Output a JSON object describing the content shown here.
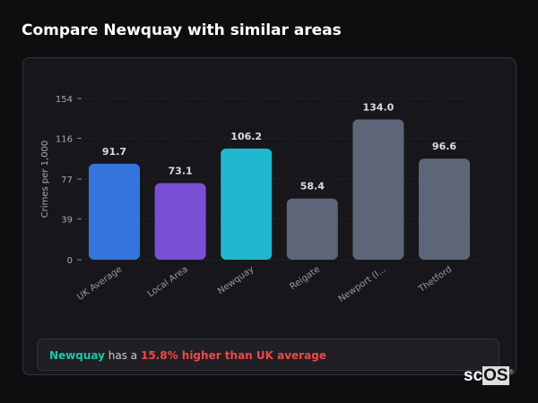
{
  "header": {
    "title": "Compare Newquay with similar areas"
  },
  "chart_data": {
    "type": "bar",
    "ylabel": "Crimes per 1,000",
    "xlabel": "",
    "ylim": [
      0,
      154
    ],
    "yticks": [
      "0",
      "39",
      "77",
      "116",
      "154"
    ],
    "grid": true,
    "categories": [
      "UK Average",
      "Local Area",
      "Newquay",
      "Reigate",
      "Newport (I...",
      "Thetford"
    ],
    "values": [
      91.7,
      73.1,
      106.2,
      58.4,
      134.0,
      96.6
    ],
    "data_labels": [
      "91.7",
      "73.1",
      "106.2",
      "58.4",
      "134.0",
      "96.6"
    ],
    "colors": [
      "#3574dc",
      "#7a4fd6",
      "#1fb8d0",
      "#5c6678",
      "#5c6678",
      "#5c6678"
    ]
  },
  "summary": {
    "area": "Newquay",
    "middle": " has a ",
    "comparison": "15.8% higher than UK average"
  },
  "logo": {
    "text_a": "sc",
    "text_b": "OS"
  }
}
